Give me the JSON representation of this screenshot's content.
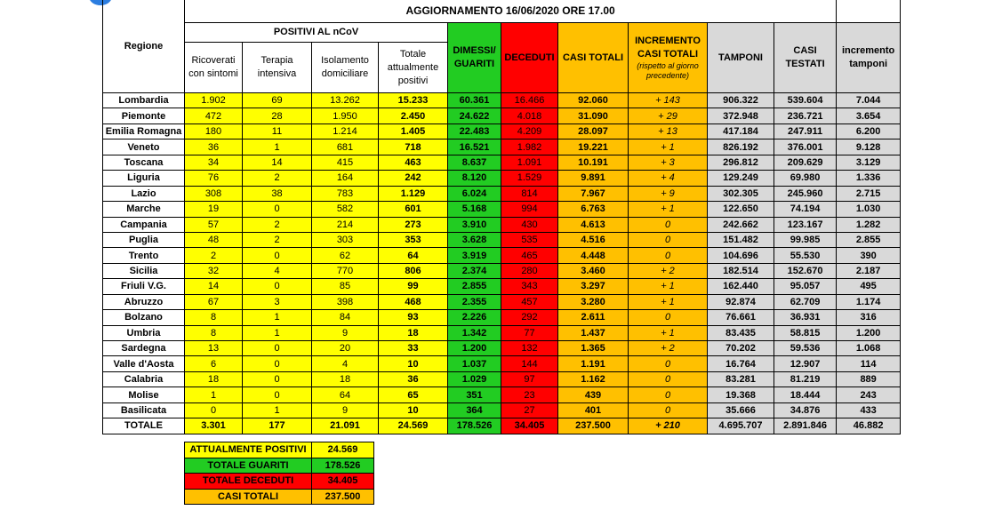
{
  "title": "AGGIORNAMENTO 16/06/2020 ORE 17.00",
  "headers": {
    "regione": "Regione",
    "positivi": "POSITIVI AL nCoV",
    "columns": [
      "Ricoverati con sintomi",
      "Terapia intensiva",
      "Isolamento domiciliare",
      "Totale attualmente positivi",
      "DIMESSI/ GUARITI",
      "DECEDUTI",
      "CASI TOTALI",
      "INCREMENTO CASI TOTALI",
      "TAMPONI",
      "CASI TESTATI",
      "incremento tamponi"
    ],
    "incremento_note": "(rispetto al giorno precedente)"
  },
  "rows": [
    [
      "Lombardia",
      "1.902",
      "69",
      "13.262",
      "15.233",
      "60.361",
      "16.466",
      "92.060",
      "+ 143",
      "906.322",
      "539.604",
      "7.044"
    ],
    [
      "Piemonte",
      "472",
      "28",
      "1.950",
      "2.450",
      "24.622",
      "4.018",
      "31.090",
      "+ 29",
      "372.948",
      "236.721",
      "3.654"
    ],
    [
      "Emilia Romagna",
      "180",
      "11",
      "1.214",
      "1.405",
      "22.483",
      "4.209",
      "28.097",
      "+ 13",
      "417.184",
      "247.911",
      "6.200"
    ],
    [
      "Veneto",
      "36",
      "1",
      "681",
      "718",
      "16.521",
      "1.982",
      "19.221",
      "+ 1",
      "826.192",
      "376.001",
      "9.128"
    ],
    [
      "Toscana",
      "34",
      "14",
      "415",
      "463",
      "8.637",
      "1.091",
      "10.191",
      "+ 3",
      "296.812",
      "209.629",
      "3.129"
    ],
    [
      "Liguria",
      "76",
      "2",
      "164",
      "242",
      "8.120",
      "1.529",
      "9.891",
      "+ 4",
      "129.249",
      "69.980",
      "1.336"
    ],
    [
      "Lazio",
      "308",
      "38",
      "783",
      "1.129",
      "6.024",
      "814",
      "7.967",
      "+ 9",
      "302.305",
      "245.960",
      "2.715"
    ],
    [
      "Marche",
      "19",
      "0",
      "582",
      "601",
      "5.168",
      "994",
      "6.763",
      "+ 1",
      "122.650",
      "74.194",
      "1.030"
    ],
    [
      "Campania",
      "57",
      "2",
      "214",
      "273",
      "3.910",
      "430",
      "4.613",
      "0",
      "242.662",
      "123.167",
      "1.282"
    ],
    [
      "Puglia",
      "48",
      "2",
      "303",
      "353",
      "3.628",
      "535",
      "4.516",
      "0",
      "151.482",
      "99.985",
      "2.855"
    ],
    [
      "Trento",
      "2",
      "0",
      "62",
      "64",
      "3.919",
      "465",
      "4.448",
      "0",
      "104.696",
      "55.530",
      "390"
    ],
    [
      "Sicilia",
      "32",
      "4",
      "770",
      "806",
      "2.374",
      "280",
      "3.460",
      "+ 2",
      "182.514",
      "152.670",
      "2.187"
    ],
    [
      "Friuli V.G.",
      "14",
      "0",
      "85",
      "99",
      "2.855",
      "343",
      "3.297",
      "+ 1",
      "162.440",
      "95.057",
      "495"
    ],
    [
      "Abruzzo",
      "67",
      "3",
      "398",
      "468",
      "2.355",
      "457",
      "3.280",
      "+ 1",
      "92.874",
      "62.709",
      "1.174"
    ],
    [
      "Bolzano",
      "8",
      "1",
      "84",
      "93",
      "2.226",
      "292",
      "2.611",
      "0",
      "76.661",
      "36.931",
      "316"
    ],
    [
      "Umbria",
      "8",
      "1",
      "9",
      "18",
      "1.342",
      "77",
      "1.437",
      "+ 1",
      "83.435",
      "58.815",
      "1.200"
    ],
    [
      "Sardegna",
      "13",
      "0",
      "20",
      "33",
      "1.200",
      "132",
      "1.365",
      "+ 2",
      "70.202",
      "59.536",
      "1.068"
    ],
    [
      "Valle d'Aosta",
      "6",
      "0",
      "4",
      "10",
      "1.037",
      "144",
      "1.191",
      "0",
      "16.764",
      "12.907",
      "114"
    ],
    [
      "Calabria",
      "18",
      "0",
      "18",
      "36",
      "1.029",
      "97",
      "1.162",
      "0",
      "83.281",
      "81.219",
      "889"
    ],
    [
      "Molise",
      "1",
      "0",
      "64",
      "65",
      "351",
      "23",
      "439",
      "0",
      "19.368",
      "18.444",
      "243"
    ],
    [
      "Basilicata",
      "0",
      "1",
      "9",
      "10",
      "364",
      "27",
      "401",
      "0",
      "35.666",
      "34.876",
      "433"
    ]
  ],
  "total": [
    "TOTALE",
    "3.301",
    "177",
    "21.091",
    "24.569",
    "178.526",
    "34.405",
    "237.500",
    "+ 210",
    "4.695.707",
    "2.891.846",
    "46.882"
  ],
  "summary": [
    [
      "ATTUALMENTE POSITIVI",
      "24.569"
    ],
    [
      "TOTALE GUARITI",
      "178.526"
    ],
    [
      "TOTALE DECEDUTI",
      "34.405"
    ],
    [
      "CASI TOTALI",
      "237.500"
    ]
  ]
}
